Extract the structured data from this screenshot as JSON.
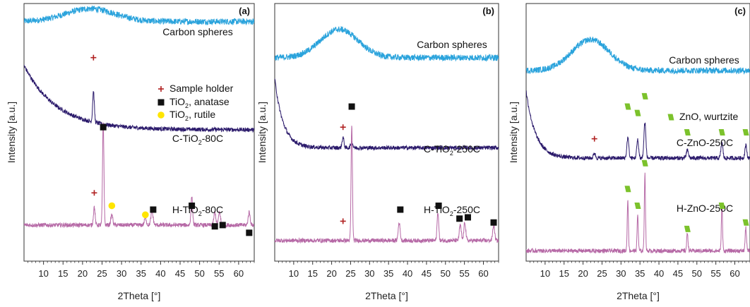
{
  "colors": {
    "carbon": "#2aa3dc",
    "composite": "#2b1a6b",
    "hydro": "#b669a6",
    "anatase_marker": "#111111",
    "rutile_marker": "#ffe500",
    "zno_marker": "#7cc22c",
    "holder_marker": "#b02020"
  },
  "chart_data": [
    {
      "type": "line",
      "panel_label": "(a)",
      "xlabel": "2Theta [°]",
      "ylabel": "Intensity [a.u.]",
      "xlim": [
        5,
        64
      ],
      "xticks": [
        10,
        15,
        20,
        25,
        30,
        35,
        40,
        45,
        50,
        55,
        60
      ],
      "series": [
        {
          "key": "carbon",
          "name": "Carbon spheres",
          "baseline": 0.93,
          "hump": {
            "center": 22,
            "height": 0.05,
            "width": 9
          },
          "peaks": []
        },
        {
          "key": "composite",
          "name_parts": [
            "C-TiO",
            "2",
            "-80C"
          ],
          "baseline": 0.51,
          "decay": {
            "amp": 0.25,
            "rate": 0.12
          },
          "peaks": [
            {
              "x": 22.8,
              "h": 0.12,
              "w": 0.3
            }
          ]
        },
        {
          "key": "hydro",
          "name_parts": [
            "H-TiO",
            "2",
            "-80C"
          ],
          "baseline": 0.14,
          "peaks": [
            {
              "x": 23.0,
              "h": 0.07,
              "w": 0.3
            },
            {
              "x": 25.3,
              "h": 0.4,
              "w": 0.25
            },
            {
              "x": 27.5,
              "h": 0.04,
              "w": 0.35
            },
            {
              "x": 36.1,
              "h": 0.03,
              "w": 0.35
            },
            {
              "x": 37.8,
              "h": 0.05,
              "w": 0.4
            },
            {
              "x": 48.0,
              "h": 0.11,
              "w": 0.3
            },
            {
              "x": 53.9,
              "h": 0.05,
              "w": 0.35
            },
            {
              "x": 55.1,
              "h": 0.05,
              "w": 0.35
            },
            {
              "x": 62.7,
              "h": 0.05,
              "w": 0.35
            }
          ]
        }
      ],
      "markers": [
        {
          "type": "holder",
          "x": 22.8,
          "y": 0.79
        },
        {
          "type": "anatase",
          "x": 25.3,
          "y": 0.52
        },
        {
          "type": "holder",
          "x": 23.0,
          "y": 0.265
        },
        {
          "type": "rutile",
          "x": 27.5,
          "y": 0.215
        },
        {
          "type": "rutile",
          "x": 36.1,
          "y": 0.18
        },
        {
          "type": "anatase",
          "x": 38.1,
          "y": 0.2
        },
        {
          "type": "anatase",
          "x": 48.0,
          "y": 0.215
        },
        {
          "type": "anatase",
          "x": 53.9,
          "y": 0.135
        },
        {
          "type": "anatase",
          "x": 55.9,
          "y": 0.14
        },
        {
          "type": "anatase",
          "x": 62.7,
          "y": 0.11
        }
      ],
      "legend": [
        {
          "type": "holder",
          "parts": [
            "Sample holder"
          ]
        },
        {
          "type": "anatase",
          "parts": [
            "TiO",
            "2",
            ", anatase"
          ]
        },
        {
          "type": "rutile",
          "parts": [
            "TiO",
            "2",
            ", rutile"
          ]
        }
      ]
    },
    {
      "type": "line",
      "panel_label": "(b)",
      "xlabel": "2Theta [°]",
      "ylabel": "Intensity [a.u.]",
      "xlim": [
        5,
        64
      ],
      "xticks": [
        10,
        15,
        20,
        25,
        30,
        35,
        40,
        45,
        50,
        55,
        60
      ],
      "series": [
        {
          "key": "carbon",
          "name": "Carbon spheres",
          "baseline": 0.79,
          "hump": {
            "center": 22,
            "height": 0.11,
            "width": 7
          },
          "peaks": []
        },
        {
          "key": "composite",
          "name_parts": [
            "C-TiO",
            "2",
            "-250C"
          ],
          "baseline": 0.44,
          "decay": {
            "amp": 0.27,
            "rate": 0.45
          },
          "peaks": [
            {
              "x": 23.0,
              "h": 0.04,
              "w": 0.35
            },
            {
              "x": 25.3,
              "h": 0.02,
              "w": 0.4
            }
          ]
        },
        {
          "key": "hydro",
          "name_parts": [
            "H-TiO",
            "2",
            "-250C"
          ],
          "baseline": 0.08,
          "peaks": [
            {
              "x": 25.3,
              "h": 0.45,
              "w": 0.25
            },
            {
              "x": 37.8,
              "h": 0.07,
              "w": 0.35
            },
            {
              "x": 48.0,
              "h": 0.11,
              "w": 0.3
            },
            {
              "x": 53.9,
              "h": 0.06,
              "w": 0.35
            },
            {
              "x": 55.1,
              "h": 0.07,
              "w": 0.35
            },
            {
              "x": 62.7,
              "h": 0.06,
              "w": 0.35
            }
          ]
        }
      ],
      "markers": [
        {
          "type": "holder",
          "x": 23.0,
          "y": 0.52
        },
        {
          "type": "anatase",
          "x": 25.3,
          "y": 0.6
        },
        {
          "type": "holder",
          "x": 23.0,
          "y": 0.155
        },
        {
          "type": "anatase",
          "x": 38.1,
          "y": 0.2
        },
        {
          "type": "anatase",
          "x": 48.2,
          "y": 0.215
        },
        {
          "type": "anatase",
          "x": 53.7,
          "y": 0.165
        },
        {
          "type": "anatase",
          "x": 55.9,
          "y": 0.17
        },
        {
          "type": "anatase",
          "x": 62.7,
          "y": 0.15
        }
      ],
      "legend": []
    },
    {
      "type": "line",
      "panel_label": "(c)",
      "xlabel": "2Theta [°]",
      "ylabel": "Intensity [a.u.]",
      "xlim": [
        5,
        64
      ],
      "xticks": [
        10,
        15,
        20,
        25,
        30,
        35,
        40,
        45,
        50,
        55,
        60
      ],
      "series": [
        {
          "key": "carbon",
          "name": "Carbon spheres",
          "baseline": 0.74,
          "hump": {
            "center": 22,
            "height": 0.12,
            "width": 7
          },
          "peaks": []
        },
        {
          "key": "composite",
          "name_parts": [
            "C-ZnO-250C"
          ],
          "baseline": 0.4,
          "decay": {
            "amp": 0.26,
            "rate": 0.4
          },
          "peaks": [
            {
              "x": 23.0,
              "h": 0.02,
              "w": 0.35
            },
            {
              "x": 31.8,
              "h": 0.08,
              "w": 0.35
            },
            {
              "x": 34.4,
              "h": 0.07,
              "w": 0.35
            },
            {
              "x": 36.3,
              "h": 0.14,
              "w": 0.35
            },
            {
              "x": 47.5,
              "h": 0.03,
              "w": 0.4
            },
            {
              "x": 56.6,
              "h": 0.06,
              "w": 0.35
            },
            {
              "x": 62.9,
              "h": 0.05,
              "w": 0.35
            }
          ]
        },
        {
          "key": "hydro",
          "name_parts": [
            "H-ZnO-250C"
          ],
          "baseline": 0.04,
          "peaks": [
            {
              "x": 31.8,
              "h": 0.2,
              "w": 0.22
            },
            {
              "x": 34.4,
              "h": 0.14,
              "w": 0.22
            },
            {
              "x": 36.3,
              "h": 0.3,
              "w": 0.22
            },
            {
              "x": 47.5,
              "h": 0.07,
              "w": 0.25
            },
            {
              "x": 56.6,
              "h": 0.18,
              "w": 0.22
            },
            {
              "x": 62.9,
              "h": 0.09,
              "w": 0.25
            }
          ]
        }
      ],
      "markers": [
        {
          "type": "zno",
          "x": 31.8,
          "y": 0.6
        },
        {
          "type": "zno",
          "x": 34.4,
          "y": 0.575
        },
        {
          "type": "zno",
          "x": 36.3,
          "y": 0.64
        },
        {
          "type": "zno",
          "x": 47.5,
          "y": 0.5
        },
        {
          "type": "zno",
          "x": 56.6,
          "y": 0.5
        },
        {
          "type": "zno",
          "x": 62.9,
          "y": 0.5
        },
        {
          "type": "holder",
          "x": 23.0,
          "y": 0.475
        },
        {
          "type": "zno",
          "x": 36.3,
          "y": 0.38
        },
        {
          "type": "zno",
          "x": 31.8,
          "y": 0.28
        },
        {
          "type": "zno",
          "x": 34.4,
          "y": 0.215
        },
        {
          "type": "zno",
          "x": 47.5,
          "y": 0.125
        },
        {
          "type": "zno",
          "x": 56.6,
          "y": 0.215
        },
        {
          "type": "zno",
          "x": 62.9,
          "y": 0.15
        }
      ],
      "legend": [
        {
          "type": "zno",
          "parts": [
            "ZnO, wurtzite"
          ]
        }
      ]
    }
  ]
}
